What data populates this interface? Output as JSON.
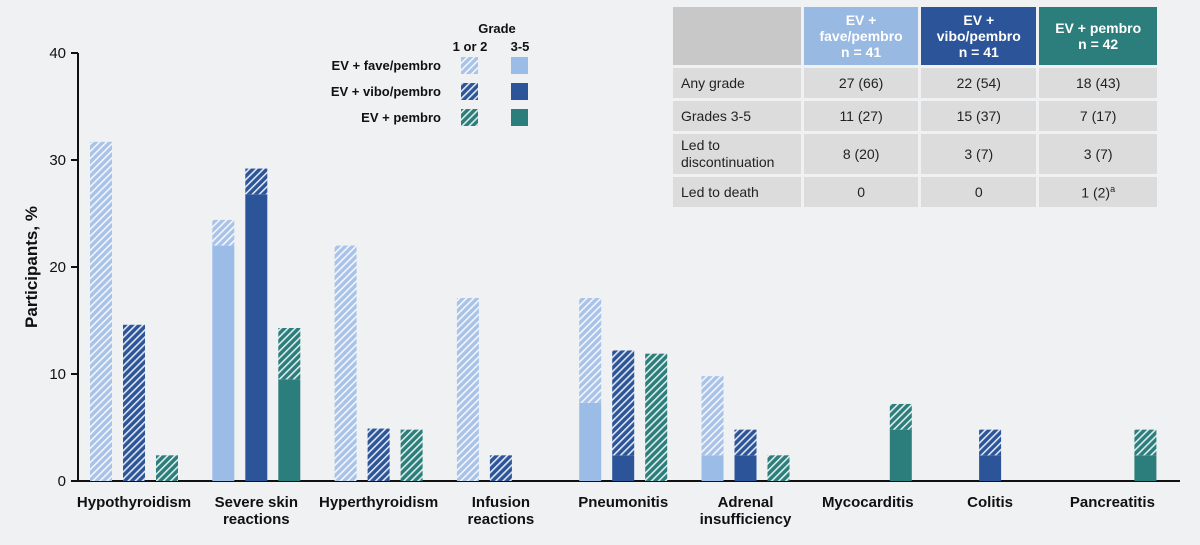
{
  "chart_data": {
    "type": "bar",
    "ylabel": "Participants, %",
    "ylim": [
      0,
      40
    ],
    "yticks": [
      "0",
      "10",
      "20",
      "30",
      "40"
    ],
    "categories": [
      [
        "Hypothyroidism"
      ],
      [
        "Severe skin",
        "reactions"
      ],
      [
        "Hyperthyroidism"
      ],
      [
        "Infusion",
        "reactions"
      ],
      [
        "Pneumonitis"
      ],
      [
        "Adrenal",
        "insufficiency"
      ],
      [
        "Mycocarditis"
      ],
      [
        "Colitis"
      ],
      [
        "Pancreatitis"
      ]
    ],
    "stacking": "stacked (grade 3-5 solid at bottom, grade 1 or 2 hatched on top)",
    "legend": {
      "title": "Grade",
      "col1": "1 or 2",
      "col2": "3-5",
      "placement": "top-center"
    },
    "series": [
      {
        "name": "EV + fave/pembro",
        "color_grade12": "#a9c3e8",
        "color_grade35": "#9bbce6",
        "grade_3_5": [
          0,
          22,
          0,
          0,
          7.3,
          2.4,
          0,
          0,
          0
        ],
        "grade_1_2": [
          31.7,
          2.4,
          22,
          17.1,
          9.8,
          7.4,
          0,
          0,
          0
        ]
      },
      {
        "name": "EV + vibo/pembro",
        "color_grade12": "#2c5599",
        "color_grade35": "#2c5599",
        "grade_3_5": [
          0,
          26.8,
          0,
          0,
          2.4,
          2.4,
          0,
          2.4,
          0
        ],
        "grade_1_2": [
          14.6,
          2.4,
          4.9,
          2.4,
          9.8,
          2.4,
          0,
          2.4,
          0
        ]
      },
      {
        "name": "EV + pembro",
        "color_grade12": "#2b7e7b",
        "color_grade35": "#2b7e7b",
        "grade_3_5": [
          0,
          9.5,
          0,
          0,
          0,
          0,
          4.8,
          0,
          2.4
        ],
        "grade_1_2": [
          2.4,
          4.8,
          4.8,
          0,
          11.9,
          2.4,
          2.4,
          0,
          2.4
        ]
      }
    ]
  },
  "table": {
    "headers": [
      [
        "EV +",
        "fave/pembro",
        "n = 41"
      ],
      [
        "EV +",
        "vibo/pembro",
        "n = 41"
      ],
      [
        "EV + pembro",
        "n = 42"
      ]
    ],
    "rows": [
      {
        "label": "Any grade",
        "label2": "",
        "values": [
          "27 (66)",
          "22 (54)",
          "18 (43)"
        ]
      },
      {
        "label": "Grades 3-5",
        "label2": "",
        "values": [
          "11 (27)",
          "15 (37)",
          "7 (17)"
        ]
      },
      {
        "label": "Led to",
        "label2": "discontinuation",
        "values": [
          "8 (20)",
          "3 (7)",
          "3 (7)"
        ]
      },
      {
        "label": "Led to death",
        "label2": "",
        "values": [
          "0",
          "0",
          "1 (2)"
        ]
      }
    ],
    "footnote_marker": "a"
  }
}
